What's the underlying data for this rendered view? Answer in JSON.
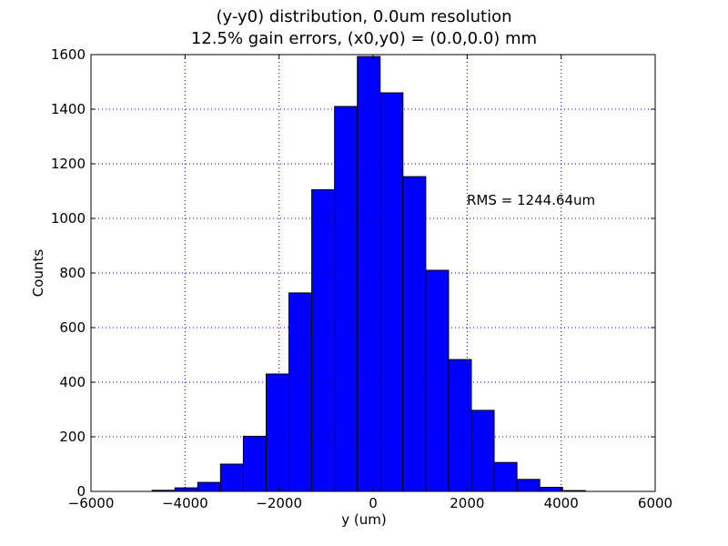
{
  "chart_data": {
    "type": "bar",
    "title_line1": "(y-y0) distribution, 0.0um resolution",
    "title_line2": "12.5% gain errors, (x0,y0) = (0.0,0.0) mm",
    "xlabel": "y (um)",
    "ylabel": "Counts",
    "annotation": "RMS = 1244.64um",
    "xlim": [
      -6000,
      6000
    ],
    "ylim": [
      0,
      1600
    ],
    "xticks": [
      -6000,
      -4000,
      -2000,
      0,
      2000,
      4000,
      6000
    ],
    "yticks": [
      0,
      200,
      400,
      600,
      800,
      1000,
      1200,
      1400,
      1600
    ],
    "grid": true,
    "bar_color": "#0000ff",
    "bin_edges": [
      -4700,
      -4215,
      -3730,
      -3245,
      -2760,
      -2275,
      -1790,
      -1305,
      -820,
      -335,
      150,
      635,
      1120,
      1605,
      2090,
      2575,
      3060,
      3545,
      4030,
      4515
    ],
    "values": [
      4,
      13,
      33,
      100,
      202,
      430,
      727,
      1105,
      1410,
      1593,
      1460,
      1153,
      810,
      483,
      297,
      106,
      44,
      15,
      3
    ]
  }
}
